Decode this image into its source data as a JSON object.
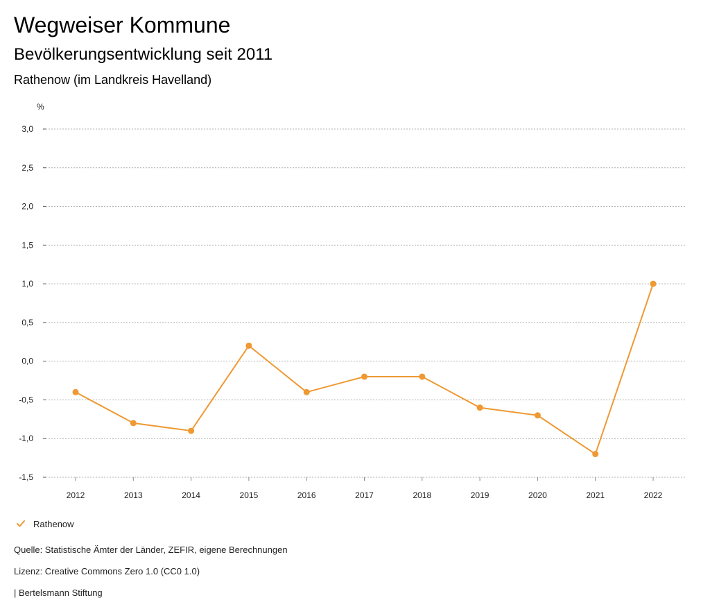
{
  "header": {
    "title": "Wegweiser Kommune",
    "subtitle": "Bevölkerungsentwicklung seit 2011",
    "region": "Rathenow (im Landkreis Havelland)"
  },
  "chart_data": {
    "type": "line",
    "title": "Bevölkerungsentwicklung seit 2011",
    "xlabel": "",
    "ylabel": "%",
    "categories": [
      "2012",
      "2013",
      "2014",
      "2015",
      "2016",
      "2017",
      "2018",
      "2019",
      "2020",
      "2021",
      "2022"
    ],
    "series": [
      {
        "name": "Rathenow",
        "values": [
          -0.4,
          -0.8,
          -0.9,
          0.2,
          -0.4,
          -0.2,
          -0.2,
          -0.6,
          -0.7,
          -1.2,
          1.0
        ]
      }
    ],
    "ylim": [
      -1.5,
      3.0
    ],
    "yticks": [
      -1.5,
      -1.0,
      -0.5,
      0.0,
      0.5,
      1.0,
      1.5,
      2.0,
      2.5,
      3.0
    ],
    "ytick_labels": [
      "-1,5",
      "-1,0",
      "-0,5",
      "0,0",
      "0,5",
      "1,0",
      "1,5",
      "2,0",
      "2,5",
      "3,0"
    ],
    "grid": true,
    "legend_position": "bottom-left",
    "series_color": "#ee9933"
  },
  "legend": {
    "label": "Rathenow"
  },
  "footer": {
    "source": "Quelle: Statistische Ämter der Länder, ZEFIR, eigene Berechnungen",
    "license": "Lizenz: Creative Commons Zero 1.0 (CC0 1.0)",
    "publisher": "| Bertelsmann Stiftung"
  }
}
